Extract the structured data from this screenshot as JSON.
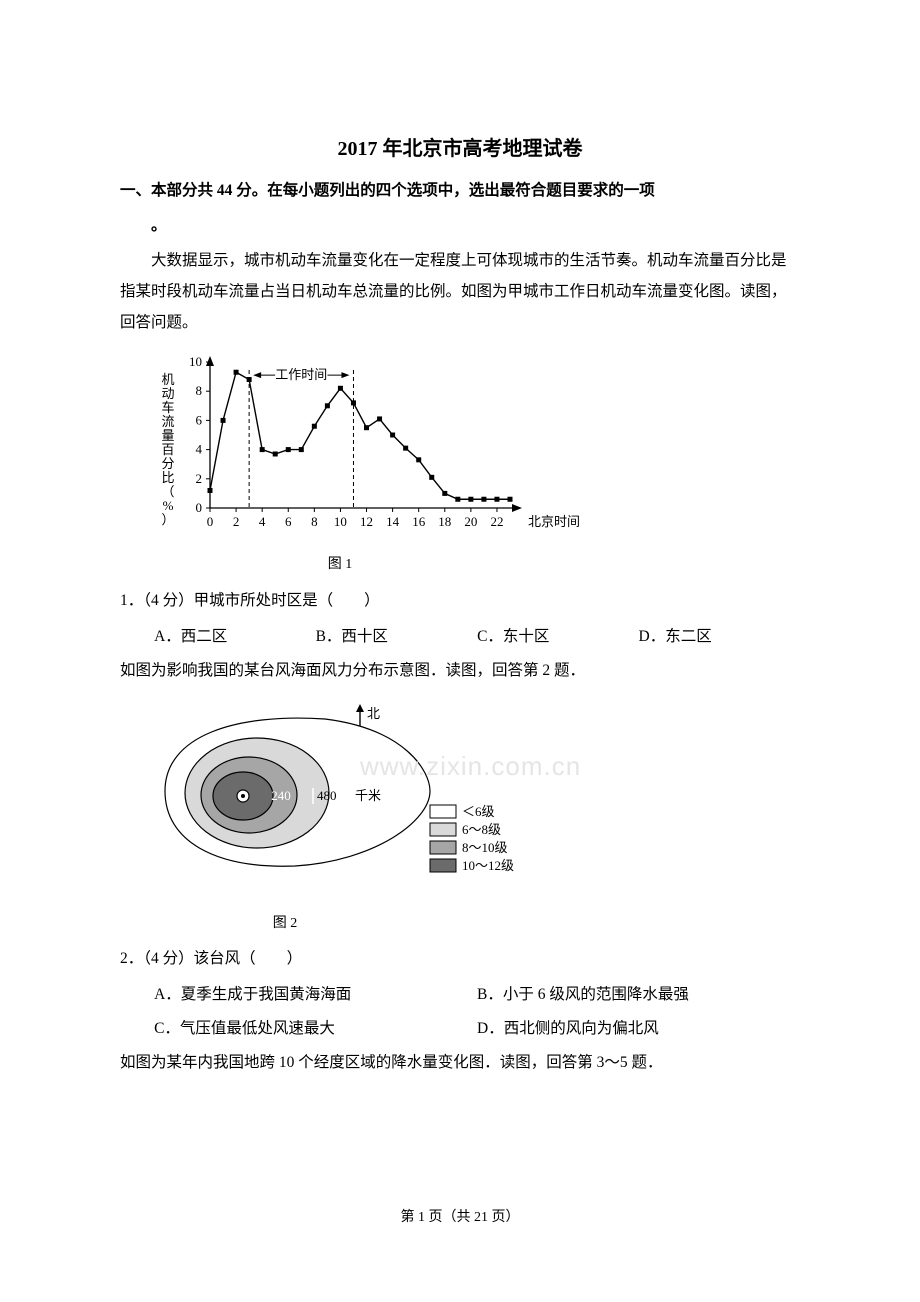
{
  "page": {
    "title": "2017 年北京市高考地理试卷",
    "section_heading": "一、本部分共 44 分。在每小题列出的四个选项中，选出最符合题目要求的一项",
    "section_heading_suffix": "。",
    "watermark": "www.zixin.com.cn",
    "footer": "第 1 页（共 21 页）"
  },
  "intro1": "大数据显示，城市机动车流量变化在一定程度上可体现城市的生活节奏。机动车流量百分比是指某时段机动车流量占当日机动车总流量的比例。如图为甲城市工作日机动车流量变化图。读图，回答问题。",
  "chart1": {
    "type": "line",
    "y_label": "机动车流量百分比（%）",
    "x_label": "北京时间",
    "caption": "图 1",
    "annotation": "工作时间",
    "xlim": [
      0,
      23
    ],
    "ylim": [
      0,
      10
    ],
    "ytick_step": 2,
    "xtick_step": 2,
    "marker": "square",
    "line_color": "#000000",
    "bg_color": "#ffffff",
    "x": [
      0,
      1,
      2,
      3,
      4,
      5,
      6,
      7,
      8,
      9,
      10,
      11,
      12,
      13,
      14,
      15,
      16,
      17,
      18,
      19,
      20,
      21,
      22,
      23
    ],
    "y": [
      1.2,
      6.0,
      9.3,
      8.8,
      4.0,
      3.7,
      4.0,
      4.0,
      5.6,
      7.0,
      8.2,
      7.2,
      5.5,
      6.1,
      5.0,
      4.1,
      3.3,
      2.1,
      1.0,
      0.6,
      0.6,
      0.6,
      0.6,
      0.6
    ],
    "workband_x": [
      3,
      11
    ],
    "fontsize_axis": 13,
    "fontsize_label": 13
  },
  "q1": {
    "stem": "1．（4 分）甲城市所处时区是（　　）",
    "options": {
      "A": "A．西二区",
      "B": "B．西十区",
      "C": "C．东十区",
      "D": "D．东二区"
    }
  },
  "intro2": "如图为影响我国的某台风海面风力分布示意图．读图，回答第 2 题．",
  "chart2": {
    "type": "contour",
    "caption": "图 2",
    "north_label": "北",
    "scale_labels": [
      "240",
      "480"
    ],
    "scale_unit": "千米",
    "legend": [
      {
        "fill": "#ffffff",
        "label": "＜6级"
      },
      {
        "fill": "#d9d9d9",
        "label": "6～8级"
      },
      {
        "fill": "#a6a6a6",
        "label": "8～10级"
      },
      {
        "fill": "#6b6b6b",
        "label": "10～12级"
      }
    ],
    "line_color": "#000000",
    "eye_fill": "#ffffff",
    "fontsize": 13
  },
  "q2": {
    "stem": "2．（4 分）该台风（　　）",
    "options": {
      "A": "A．夏季生成于我国黄海海面",
      "B": "B．小于 6 级风的范围降水最强",
      "C": "C．气压值最低处风速最大",
      "D": "D．西北侧的风向为偏北风"
    }
  },
  "intro3": "如图为某年内我国地跨 10 个经度区域的降水量变化图．读图，回答第 3～5 题．"
}
